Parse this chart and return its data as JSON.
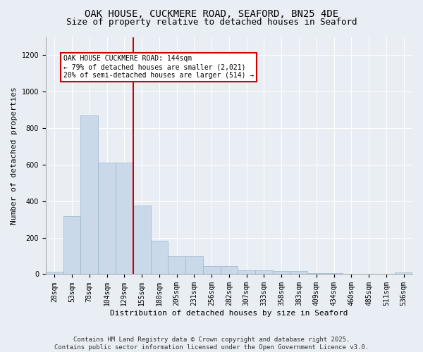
{
  "title1": "OAK HOUSE, CUCKMERE ROAD, SEAFORD, BN25 4DE",
  "title2": "Size of property relative to detached houses in Seaford",
  "xlabel": "Distribution of detached houses by size in Seaford",
  "ylabel": "Number of detached properties",
  "categories": [
    "28sqm",
    "53sqm",
    "78sqm",
    "104sqm",
    "129sqm",
    "155sqm",
    "180sqm",
    "205sqm",
    "231sqm",
    "256sqm",
    "282sqm",
    "307sqm",
    "333sqm",
    "358sqm",
    "383sqm",
    "409sqm",
    "434sqm",
    "460sqm",
    "485sqm",
    "511sqm",
    "536sqm"
  ],
  "values": [
    15,
    320,
    870,
    610,
    610,
    375,
    185,
    100,
    100,
    45,
    45,
    20,
    20,
    18,
    18,
    5,
    5,
    2,
    0,
    0,
    8
  ],
  "bar_color": "#c9d9ea",
  "bar_edge_color": "#9ab5cc",
  "vline_x_index": 5,
  "vline_color": "#cc0000",
  "annotation_text": "OAK HOUSE CUCKMERE ROAD: 144sqm\n← 79% of detached houses are smaller (2,021)\n20% of semi-detached houses are larger (514) →",
  "annotation_box_color": "#ffffff",
  "annotation_box_edge": "#cc0000",
  "ylim": [
    0,
    1300
  ],
  "yticks": [
    0,
    200,
    400,
    600,
    800,
    1000,
    1200
  ],
  "background_color": "#e8eef4",
  "footer": "Contains HM Land Registry data © Crown copyright and database right 2025.\nContains public sector information licensed under the Open Government Licence v3.0.",
  "title_fontsize": 10,
  "subtitle_fontsize": 9,
  "label_fontsize": 8,
  "tick_fontsize": 7,
  "footer_fontsize": 6.5,
  "annotation_fontsize": 7
}
